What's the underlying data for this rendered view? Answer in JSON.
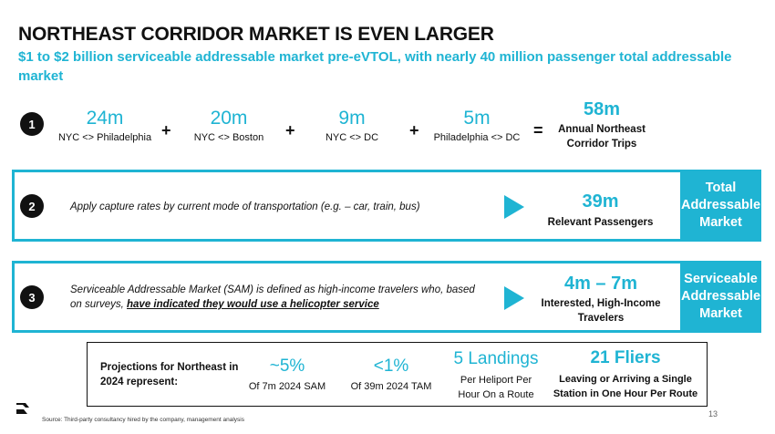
{
  "title": "NORTHEAST CORRIDOR MARKET IS EVEN LARGER",
  "subtitle": "$1 to $2 billion serviceable addressable market pre-eVTOL, with nearly 40 million passenger total addressable market",
  "step1": {
    "number": "1",
    "items": [
      {
        "value": "24m",
        "label": "NYC <> Philadelphia"
      },
      {
        "value": "20m",
        "label": "NYC <> Boston"
      },
      {
        "value": "9m",
        "label": "NYC <> DC"
      },
      {
        "value": "5m",
        "label": "Philadelphia <> DC"
      }
    ],
    "plus": "+",
    "equals": "=",
    "total_value": "58m",
    "total_label_1": "Annual Northeast",
    "total_label_2": "Corridor Trips"
  },
  "step2": {
    "number": "2",
    "text": "Apply capture rates by current mode of transportation (e.g. – car, train, bus)",
    "value": "39m",
    "value_label": "Relevant Passengers",
    "panel_line1": "Total",
    "panel_line2": "Addressable",
    "panel_line3": "Market"
  },
  "step3": {
    "number": "3",
    "text_line1": "Serviceable Addressable Market (SAM) is defined as high-income travelers who, based",
    "text_line2_prefix": "on surveys, ",
    "text_line2_emph": "have indicated they would use a helicopter service",
    "value": "4m – 7m",
    "value_label_1": "Interested, High-Income",
    "value_label_2": "Travelers",
    "panel_line1": "Serviceable",
    "panel_line2": "Addressable",
    "panel_line3": "Market"
  },
  "projections": {
    "intro_line1": "Projections for Northeast in",
    "intro_line2": "2024 represent:",
    "sam_value": "~5%",
    "sam_label": "Of 7m 2024 SAM",
    "tam_value": "<1%",
    "tam_label": "Of 39m 2024 TAM",
    "landings_value": "5 Landings",
    "landings_label_1": "Per Heliport Per",
    "landings_label_2": "Hour On a Route",
    "fliers_value": "21 Fliers",
    "fliers_label_1": "Leaving or Arriving a Single",
    "fliers_label_2": "Station in One Hour Per Route"
  },
  "footer": {
    "source": "Source: Third-party consultancy hired by the company, management analysis",
    "page_number": "13"
  },
  "colors": {
    "accent": "#1fb4d3",
    "text": "#111111"
  }
}
